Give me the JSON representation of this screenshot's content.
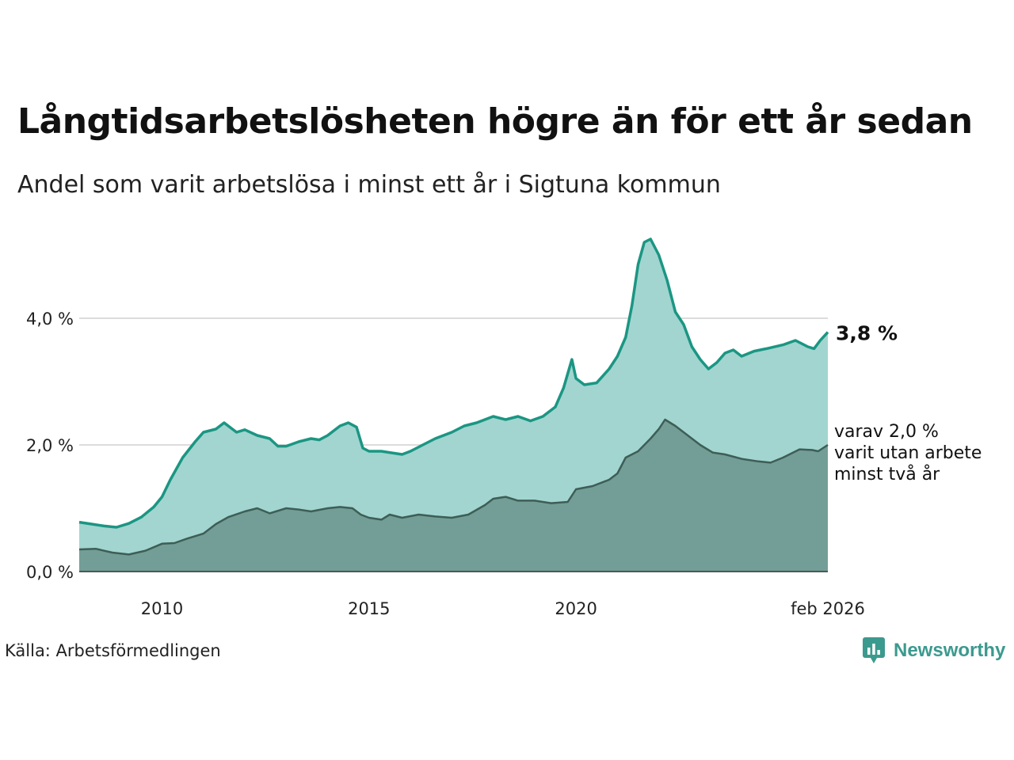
{
  "header": {
    "title": "Långtidsarbetslösheten högre än för ett år sedan",
    "subtitle": "Andel som varit arbetslösa i minst ett år i Sigtuna kommun"
  },
  "footer": {
    "source": "Källa: Arbetsförmedlingen",
    "brand": "Newsworthy"
  },
  "colors": {
    "total_line": "#1b9683",
    "total_fill": "#a2d5d0",
    "long_line": "#3d5e56",
    "long_fill": "#729e97",
    "grid": "#dcdcdc"
  },
  "chart_data": {
    "type": "area",
    "title": "Långtidsarbetslösheten högre än för ett år sedan",
    "subtitle": "Andel som varit arbetslösa i minst ett år i Sigtuna kommun",
    "xlabel": "",
    "ylabel": "",
    "x_range": [
      2008.0,
      2026.083
    ],
    "ylim": [
      0,
      5.3
    ],
    "y_ticks": [
      {
        "value": 0,
        "label": "0,0 %"
      },
      {
        "value": 2,
        "label": "2,0 %"
      },
      {
        "value": 4,
        "label": "4,0 %"
      }
    ],
    "x_ticks": [
      {
        "value": 2010,
        "label": "2010"
      },
      {
        "value": 2015,
        "label": "2015"
      },
      {
        "value": 2020,
        "label": "2020"
      },
      {
        "value": 2026.083,
        "label": "feb 2026"
      }
    ],
    "series": [
      {
        "name": "Minst ett år",
        "end_label": "3,8 %",
        "points": [
          [
            2008.0,
            0.78
          ],
          [
            2008.3,
            0.75
          ],
          [
            2008.6,
            0.72
          ],
          [
            2008.9,
            0.7
          ],
          [
            2009.2,
            0.76
          ],
          [
            2009.5,
            0.86
          ],
          [
            2009.8,
            1.02
          ],
          [
            2010.0,
            1.18
          ],
          [
            2010.2,
            1.45
          ],
          [
            2010.5,
            1.8
          ],
          [
            2010.8,
            2.05
          ],
          [
            2011.0,
            2.2
          ],
          [
            2011.3,
            2.25
          ],
          [
            2011.5,
            2.35
          ],
          [
            2011.8,
            2.2
          ],
          [
            2012.0,
            2.24
          ],
          [
            2012.3,
            2.15
          ],
          [
            2012.6,
            2.1
          ],
          [
            2012.8,
            1.98
          ],
          [
            2013.0,
            1.98
          ],
          [
            2013.3,
            2.05
          ],
          [
            2013.6,
            2.1
          ],
          [
            2013.8,
            2.08
          ],
          [
            2014.0,
            2.15
          ],
          [
            2014.3,
            2.3
          ],
          [
            2014.5,
            2.35
          ],
          [
            2014.7,
            2.28
          ],
          [
            2014.85,
            1.95
          ],
          [
            2015.0,
            1.9
          ],
          [
            2015.3,
            1.9
          ],
          [
            2015.5,
            1.88
          ],
          [
            2015.8,
            1.85
          ],
          [
            2016.0,
            1.9
          ],
          [
            2016.3,
            2.0
          ],
          [
            2016.6,
            2.1
          ],
          [
            2017.0,
            2.2
          ],
          [
            2017.3,
            2.3
          ],
          [
            2017.6,
            2.35
          ],
          [
            2018.0,
            2.45
          ],
          [
            2018.3,
            2.4
          ],
          [
            2018.6,
            2.45
          ],
          [
            2018.9,
            2.38
          ],
          [
            2019.2,
            2.45
          ],
          [
            2019.5,
            2.6
          ],
          [
            2019.7,
            2.9
          ],
          [
            2019.9,
            3.35
          ],
          [
            2020.0,
            3.05
          ],
          [
            2020.2,
            2.95
          ],
          [
            2020.5,
            2.98
          ],
          [
            2020.8,
            3.2
          ],
          [
            2021.0,
            3.4
          ],
          [
            2021.2,
            3.7
          ],
          [
            2021.35,
            4.2
          ],
          [
            2021.5,
            4.85
          ],
          [
            2021.65,
            5.2
          ],
          [
            2021.8,
            5.25
          ],
          [
            2022.0,
            5.0
          ],
          [
            2022.2,
            4.6
          ],
          [
            2022.4,
            4.1
          ],
          [
            2022.6,
            3.9
          ],
          [
            2022.8,
            3.55
          ],
          [
            2023.0,
            3.35
          ],
          [
            2023.2,
            3.2
          ],
          [
            2023.4,
            3.3
          ],
          [
            2023.6,
            3.45
          ],
          [
            2023.8,
            3.5
          ],
          [
            2024.0,
            3.4
          ],
          [
            2024.3,
            3.48
          ],
          [
            2024.6,
            3.52
          ],
          [
            2025.0,
            3.58
          ],
          [
            2025.3,
            3.65
          ],
          [
            2025.6,
            3.55
          ],
          [
            2025.75,
            3.52
          ],
          [
            2025.9,
            3.65
          ],
          [
            2026.083,
            3.78
          ]
        ]
      },
      {
        "name": "Minst två år",
        "end_label_lines": [
          "varav 2,0 %",
          "varit utan arbete",
          "minst två år"
        ],
        "points": [
          [
            2008.0,
            0.35
          ],
          [
            2008.4,
            0.36
          ],
          [
            2008.8,
            0.3
          ],
          [
            2009.2,
            0.27
          ],
          [
            2009.6,
            0.33
          ],
          [
            2010.0,
            0.44
          ],
          [
            2010.3,
            0.45
          ],
          [
            2010.6,
            0.52
          ],
          [
            2011.0,
            0.6
          ],
          [
            2011.3,
            0.75
          ],
          [
            2011.6,
            0.86
          ],
          [
            2012.0,
            0.95
          ],
          [
            2012.3,
            1.0
          ],
          [
            2012.6,
            0.92
          ],
          [
            2013.0,
            1.0
          ],
          [
            2013.3,
            0.98
          ],
          [
            2013.6,
            0.95
          ],
          [
            2014.0,
            1.0
          ],
          [
            2014.3,
            1.02
          ],
          [
            2014.6,
            1.0
          ],
          [
            2014.8,
            0.9
          ],
          [
            2015.0,
            0.85
          ],
          [
            2015.3,
            0.82
          ],
          [
            2015.5,
            0.9
          ],
          [
            2015.8,
            0.85
          ],
          [
            2016.2,
            0.9
          ],
          [
            2016.6,
            0.87
          ],
          [
            2017.0,
            0.85
          ],
          [
            2017.4,
            0.9
          ],
          [
            2017.8,
            1.05
          ],
          [
            2018.0,
            1.15
          ],
          [
            2018.3,
            1.18
          ],
          [
            2018.6,
            1.12
          ],
          [
            2019.0,
            1.12
          ],
          [
            2019.4,
            1.08
          ],
          [
            2019.8,
            1.1
          ],
          [
            2020.0,
            1.3
          ],
          [
            2020.4,
            1.35
          ],
          [
            2020.8,
            1.45
          ],
          [
            2021.0,
            1.55
          ],
          [
            2021.2,
            1.8
          ],
          [
            2021.5,
            1.9
          ],
          [
            2021.8,
            2.1
          ],
          [
            2022.0,
            2.25
          ],
          [
            2022.15,
            2.4
          ],
          [
            2022.4,
            2.3
          ],
          [
            2022.7,
            2.15
          ],
          [
            2023.0,
            2.0
          ],
          [
            2023.3,
            1.88
          ],
          [
            2023.6,
            1.85
          ],
          [
            2024.0,
            1.78
          ],
          [
            2024.4,
            1.74
          ],
          [
            2024.7,
            1.72
          ],
          [
            2025.0,
            1.8
          ],
          [
            2025.4,
            1.93
          ],
          [
            2025.7,
            1.92
          ],
          [
            2025.85,
            1.9
          ],
          [
            2026.083,
            2.0
          ]
        ]
      }
    ]
  }
}
